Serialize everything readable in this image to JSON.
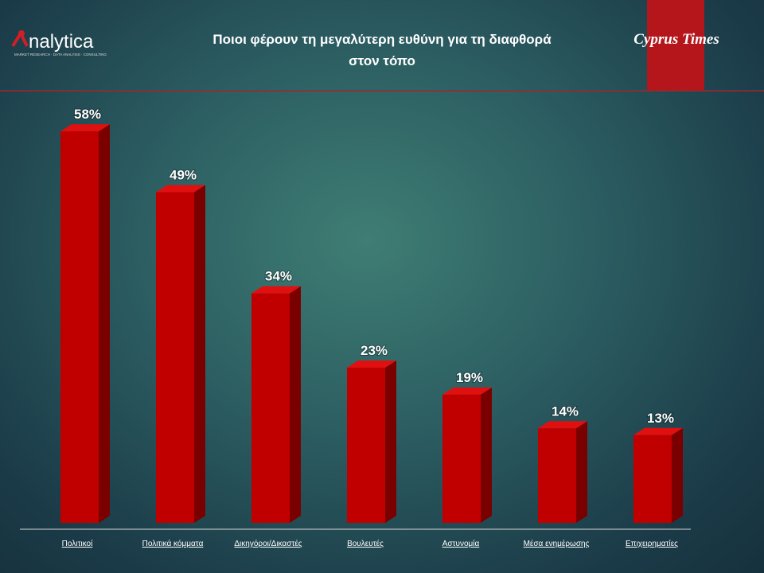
{
  "branding": {
    "left_logo": "nalytica",
    "left_logo_tagline": "MARKET RESEARCH · DATA ANALYSIS · CONSULTING",
    "right_logo": "Cyprus Times"
  },
  "chart_data": {
    "type": "bar",
    "title": "Ποιοι φέρουν τη μεγαλύτερη ευθύνη για τη διαφθορά στον τόπο",
    "categories": [
      "Πολιτικοί",
      "Πολιτικά κόμματα",
      "Δικηγόροι/Δικαστές",
      "Βουλευτές",
      "Αστυνομία",
      "Μέσα ενημέρωσης",
      "Επιχειρηματίες"
    ],
    "values": [
      58,
      49,
      34,
      23,
      19,
      14,
      13
    ],
    "value_labels": [
      "58%",
      "49%",
      "34%",
      "23%",
      "19%",
      "14%",
      "13%"
    ],
    "color": "#c00000"
  }
}
